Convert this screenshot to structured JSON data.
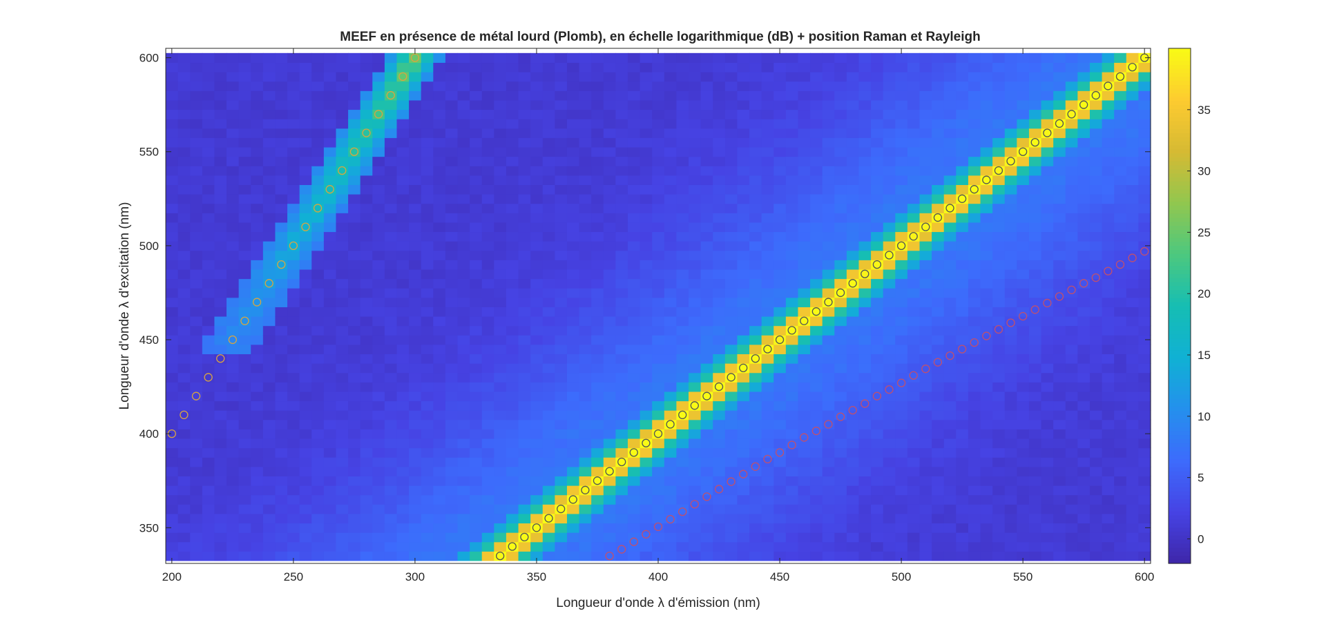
{
  "chart_data": {
    "type": "heatmap",
    "title": "MEEF en présence de métal lourd (Plomb), en échelle logarithmique (dB) + position Raman et Rayleigh",
    "xlabel": "Longueur d'onde λ d'émission (nm)",
    "ylabel": "Longueur d'onde λ d'excitation (nm)",
    "xlim": [
      197.5,
      602.5
    ],
    "ylim": [
      331,
      605
    ],
    "xticks": [
      "200",
      "250",
      "300",
      "350",
      "400",
      "450",
      "500",
      "550",
      "600"
    ],
    "yticks": [
      "350",
      "400",
      "450",
      "500",
      "550",
      "600"
    ],
    "colorbar": {
      "colormap": "parula",
      "clim": [
        -2,
        40
      ],
      "ticks": [
        "0",
        "5",
        "10",
        "15",
        "20",
        "25",
        "30",
        "35"
      ]
    },
    "grid": false,
    "cell_size_nm": {
      "emission": 5,
      "excitation": 5
    },
    "features": [
      {
        "name": "Rayleigh",
        "relation": "emission = excitation",
        "peak_value_db": 40,
        "half_width_nm": 8
      },
      {
        "name": "Rayleigh second ordre",
        "relation": "emission = excitation / 2",
        "peak_value_db": 25,
        "half_width_nm": 8
      },
      {
        "name": "background",
        "relation": "increases toward emission = excitation",
        "low_db": 1,
        "high_db": 8
      }
    ],
    "series": [
      {
        "marker": "circle",
        "color": "#d9a441",
        "relation": "excitation = 2 × emission",
        "x": [
          200,
          205,
          210,
          215,
          220,
          225,
          230,
          235,
          240,
          245,
          250,
          255,
          260,
          265,
          270,
          275,
          280,
          285,
          290,
          295,
          300
        ],
        "y": [
          400,
          410,
          420,
          430,
          440,
          450,
          460,
          470,
          480,
          490,
          500,
          510,
          520,
          530,
          540,
          550,
          560,
          570,
          580,
          590,
          600
        ]
      },
      {
        "marker": "circle",
        "color": "#555555",
        "relation": "emission = excitation",
        "x": [
          335,
          340,
          345,
          350,
          355,
          360,
          365,
          370,
          375,
          380,
          385,
          390,
          395,
          400,
          405,
          410,
          415,
          420,
          425,
          430,
          435,
          440,
          445,
          450,
          455,
          460,
          465,
          470,
          475,
          480,
          485,
          490,
          495,
          500,
          505,
          510,
          515,
          520,
          525,
          530,
          535,
          540,
          545,
          550,
          555,
          560,
          565,
          570,
          575,
          580,
          585,
          590,
          595,
          600
        ],
        "y": [
          335,
          340,
          345,
          350,
          355,
          360,
          365,
          370,
          375,
          380,
          385,
          390,
          395,
          400,
          405,
          410,
          415,
          420,
          425,
          430,
          435,
          440,
          445,
          450,
          455,
          460,
          465,
          470,
          475,
          480,
          485,
          490,
          495,
          500,
          505,
          510,
          515,
          520,
          525,
          530,
          535,
          540,
          545,
          550,
          555,
          560,
          565,
          570,
          575,
          580,
          585,
          590,
          595,
          600
        ]
      },
      {
        "marker": "circle",
        "color": "#c0506e",
        "relation": "Raman",
        "x": [
          380,
          385,
          390,
          395,
          400,
          405,
          410,
          415,
          420,
          425,
          430,
          435,
          440,
          445,
          450,
          455,
          460,
          465,
          470,
          475,
          480,
          485,
          490,
          495,
          500,
          505,
          510,
          515,
          520,
          525,
          530,
          535,
          540,
          545,
          550,
          555,
          560,
          565,
          570,
          575,
          580,
          585,
          590,
          595,
          600
        ],
        "y": [
          335,
          338.5,
          342.5,
          346.5,
          350.5,
          354.5,
          358.5,
          362.5,
          366.5,
          370.5,
          374.5,
          378.5,
          382.5,
          386.5,
          390,
          394,
          398,
          401.5,
          405,
          409,
          412.5,
          416,
          420,
          423.5,
          427,
          431,
          434.5,
          438,
          441.5,
          445,
          448.5,
          452,
          455.5,
          459,
          462.5,
          466,
          469.5,
          473,
          476.5,
          480,
          483,
          486.5,
          490,
          493.5,
          497
        ]
      }
    ]
  }
}
